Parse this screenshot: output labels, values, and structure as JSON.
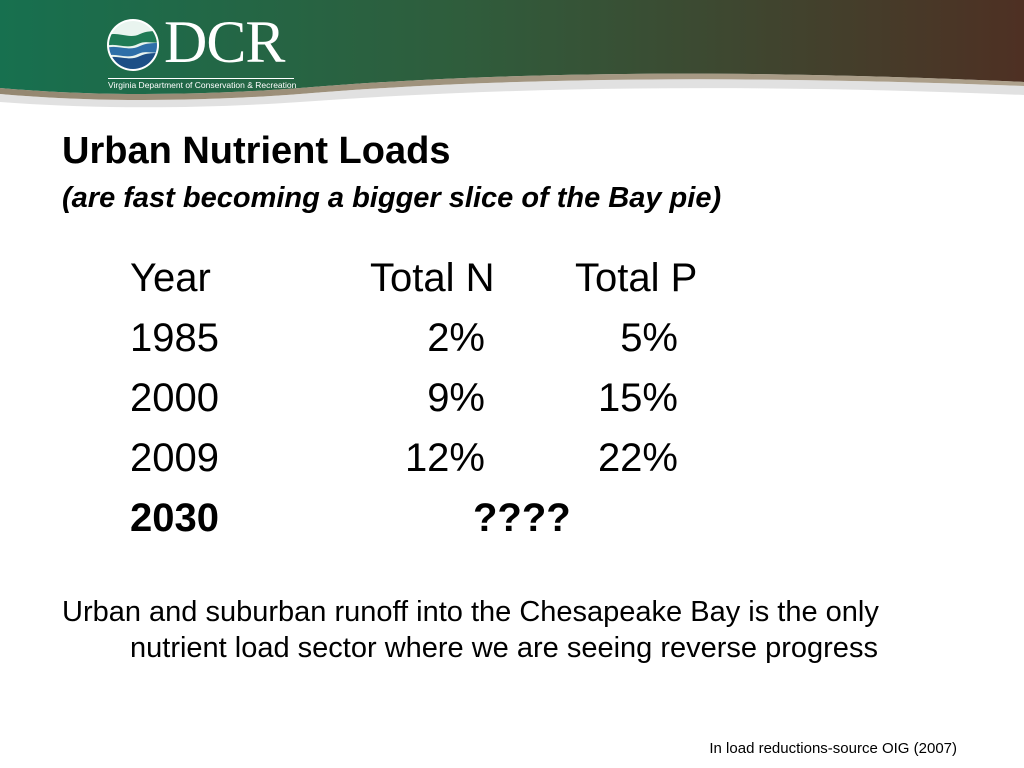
{
  "header": {
    "logo_text": "DCR",
    "logo_subtitle": "Virginia Department of Conservation & Recreation",
    "colors": {
      "banner_left": "#1a6e50",
      "banner_right": "#4a3226"
    }
  },
  "slide": {
    "title": "Urban Nutrient Loads",
    "subtitle": "(are fast becoming a bigger slice of the Bay pie)",
    "table": {
      "headers": {
        "year": "Year",
        "total_n": "Total N",
        "total_p": "Total P"
      },
      "rows": [
        {
          "year": "1985",
          "total_n": "2%",
          "total_p": "5%"
        },
        {
          "year": "2000",
          "total_n": "9%",
          "total_p": "15%"
        },
        {
          "year": "2009",
          "total_n": "12%",
          "total_p": "22%"
        }
      ],
      "future_row": {
        "year": "2030",
        "value": "????"
      }
    },
    "body": "Urban and suburban runoff into the Chesapeake Bay is the only nutrient load sector where we are seeing reverse progress",
    "source": "In load reductions-source OIG (2007)"
  }
}
